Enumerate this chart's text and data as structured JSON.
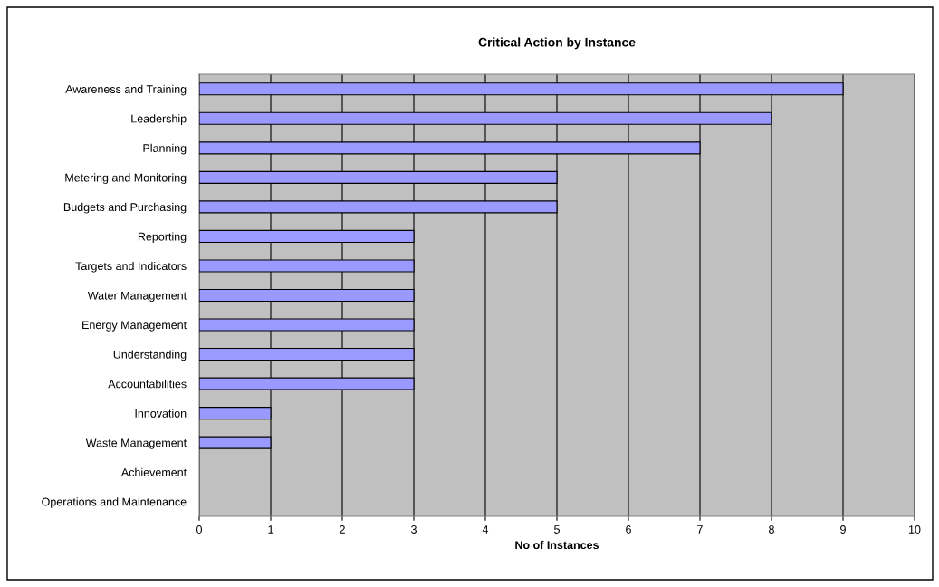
{
  "chart_data": {
    "type": "bar",
    "orientation": "horizontal",
    "title": "Critical Action by Instance",
    "xlabel": "No of Instances",
    "categories": [
      "Awareness and Training",
      "Leadership",
      "Planning",
      "Metering and Monitoring",
      "Budgets and Purchasing",
      "Reporting",
      "Targets and Indicators",
      "Water Management",
      "Energy Management",
      "Understanding",
      "Accountabilities",
      "Innovation",
      "Waste Management",
      "Achievement",
      "Operations and Maintenance"
    ],
    "values": [
      9,
      8,
      7,
      5,
      5,
      3,
      3,
      3,
      3,
      3,
      3,
      1,
      1,
      0,
      0
    ],
    "color": "#9999ff",
    "xlim": [
      0,
      10
    ],
    "xticks": [
      0,
      1,
      2,
      3,
      4,
      5,
      6,
      7,
      8,
      9,
      10
    ],
    "grid": "x",
    "legend": false
  }
}
